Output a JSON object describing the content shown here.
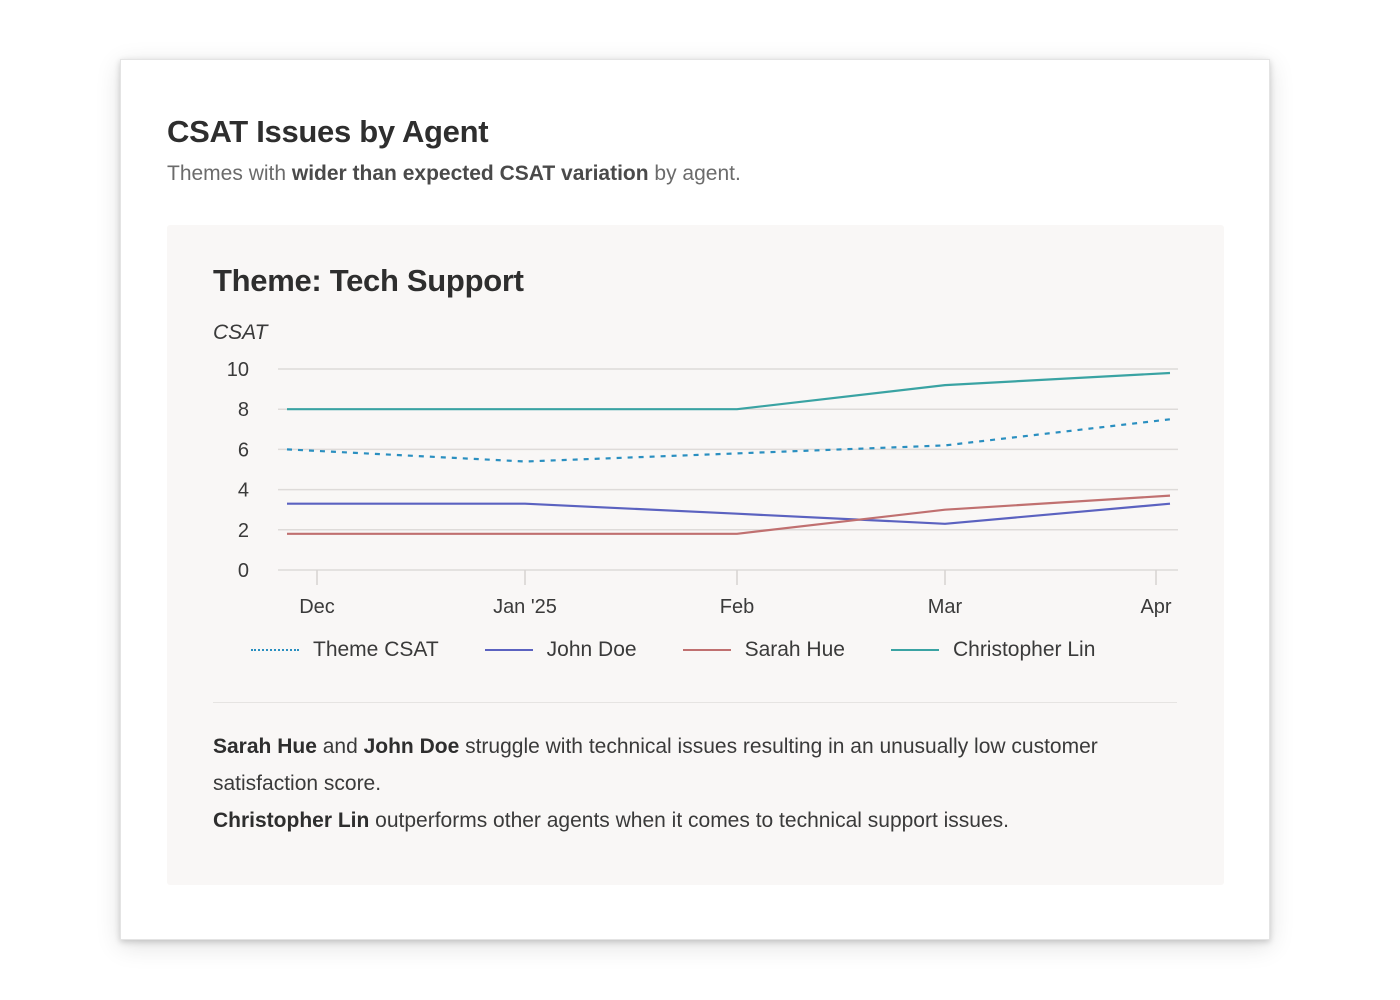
{
  "card": {
    "title": "CSAT Issues by Agent",
    "subtitle_parts": [
      {
        "text": "Themes with ",
        "bold": false
      },
      {
        "text": "wider than expected CSAT variation",
        "bold": true
      },
      {
        "text": " by agent.",
        "bold": false
      }
    ]
  },
  "panel": {
    "title": "Theme: Tech Support"
  },
  "chart_data": {
    "type": "line",
    "title": "Theme: Tech Support",
    "xlabel": "",
    "ylabel": "CSAT",
    "ylim": [
      0,
      10
    ],
    "yticks": [
      0,
      2,
      4,
      6,
      8,
      10
    ],
    "grid": true,
    "legend_position": "bottom",
    "categories": [
      "Dec",
      "Jan '25",
      "Feb",
      "Mar",
      "Apr"
    ],
    "series": [
      {
        "name": "Theme CSAT",
        "style": "dashed",
        "color": "#2a8fc0",
        "values": [
          6.0,
          5.4,
          5.8,
          6.2,
          7.5
        ]
      },
      {
        "name": "John Doe",
        "style": "solid",
        "color": "#5b62c0",
        "values": [
          3.3,
          3.3,
          2.8,
          2.3,
          3.3
        ]
      },
      {
        "name": "Sarah Hue",
        "style": "solid",
        "color": "#c07070",
        "values": [
          1.8,
          1.8,
          1.8,
          3.0,
          3.7
        ]
      },
      {
        "name": "Christopher Lin",
        "style": "solid",
        "color": "#3aa3a3",
        "values": [
          8.0,
          8.0,
          8.0,
          9.2,
          9.8
        ]
      }
    ]
  },
  "insights": [
    [
      {
        "text": "Sarah Hue",
        "bold": true
      },
      {
        "text": " and ",
        "bold": false
      },
      {
        "text": "John Doe",
        "bold": true
      },
      {
        "text": " struggle with technical issues resulting in an unusually low customer satisfaction score.",
        "bold": false
      }
    ],
    [
      {
        "text": "Christopher Lin",
        "bold": true
      },
      {
        "text": " outperforms other agents when it comes to technical support issues.",
        "bold": false
      }
    ]
  ]
}
